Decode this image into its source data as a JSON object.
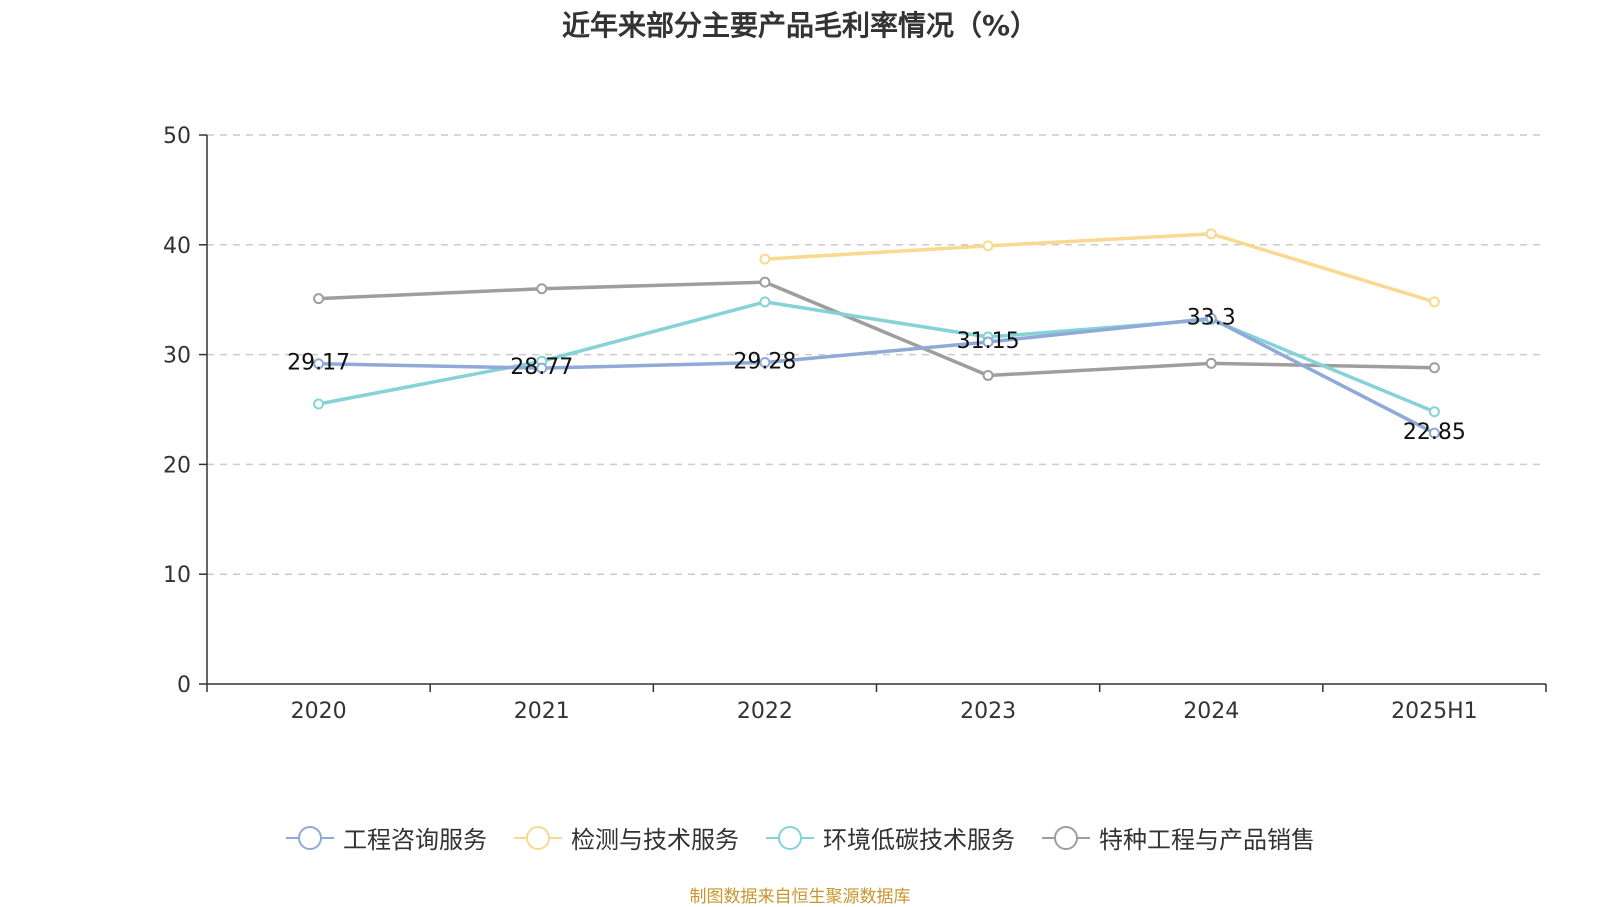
{
  "chart_data": {
    "type": "line",
    "title": "近年来部分主要产品毛利率情况（%）",
    "categories": [
      "2020",
      "2021",
      "2022",
      "2023",
      "2024",
      "2025H1"
    ],
    "ylim": [
      0,
      50
    ],
    "yticks": [
      "0",
      "10",
      "20",
      "30",
      "40",
      "50"
    ],
    "grid": true,
    "legend_position": "bottom-center",
    "series": [
      {
        "name": "工程咨询服务",
        "color": "#8fa9d9",
        "values": [
          29.17,
          28.77,
          29.28,
          31.15,
          33.3,
          22.85
        ],
        "labels": [
          "29.17",
          "28.77",
          "29.28",
          "31.15",
          "33.3",
          "22.85"
        ]
      },
      {
        "name": "检测与技术服务",
        "color": "#f9d98f",
        "values": [
          null,
          null,
          38.7,
          39.9,
          41.0,
          34.8
        ],
        "labels": []
      },
      {
        "name": "环境低碳技术服务",
        "color": "#85d3d6",
        "values": [
          25.5,
          29.4,
          34.8,
          31.6,
          33.2,
          24.8
        ],
        "labels": []
      },
      {
        "name": "特种工程与产品销售",
        "color": "#9e9e9e",
        "values": [
          35.1,
          36.0,
          36.6,
          28.1,
          29.2,
          28.8
        ],
        "labels": []
      }
    ]
  },
  "source_note": {
    "text": "制图数据来自恒生聚源数据库",
    "color": "#c9962e"
  }
}
